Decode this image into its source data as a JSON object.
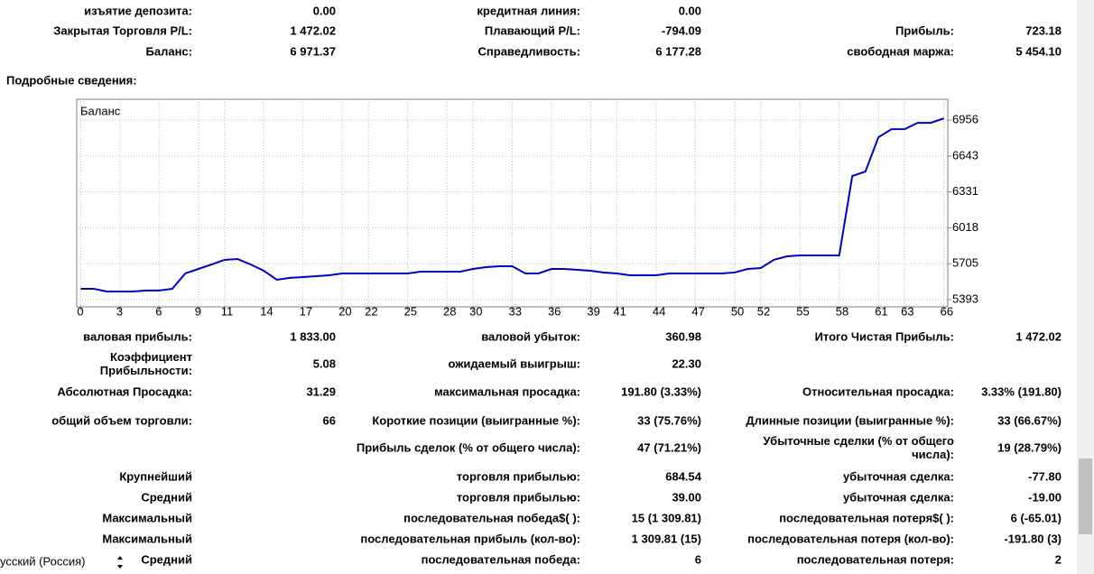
{
  "summary": {
    "rows": [
      [
        "изъятие депозита:",
        "0.00",
        "кредитная линия:",
        "0.00",
        null,
        null
      ],
      [
        "Закрытая Торговля P/L:",
        "1 472.02",
        "Плавающий P/L:",
        "-794.09",
        "Прибыль:",
        "723.18"
      ],
      [
        "Баланс:",
        "6 971.37",
        "Справедливость:",
        "6 177.28",
        "свободная маржа:",
        "5 454.10"
      ]
    ]
  },
  "section_title": "Подробные сведения:",
  "chart": {
    "type": "line",
    "title": "Баланс",
    "color": "#0000c8",
    "grid": true,
    "x": [
      0,
      1,
      2,
      3,
      4,
      5,
      6,
      7,
      8,
      9,
      10,
      11,
      12,
      13,
      14,
      15,
      16,
      17,
      18,
      19,
      20,
      21,
      22,
      23,
      24,
      25,
      26,
      27,
      28,
      29,
      30,
      31,
      32,
      33,
      34,
      35,
      36,
      37,
      38,
      39,
      40,
      41,
      42,
      43,
      44,
      45,
      46,
      47,
      48,
      49,
      50,
      51,
      52,
      53,
      54,
      55,
      56,
      57,
      58,
      59,
      60,
      61,
      62,
      63,
      64,
      65,
      66
    ],
    "values": [
      5487,
      5487,
      5464,
      5464,
      5464,
      5472,
      5472,
      5487,
      5621,
      5660,
      5699,
      5739,
      5746,
      5699,
      5644,
      5566,
      5582,
      5589,
      5597,
      5605,
      5621,
      5621,
      5621,
      5621,
      5621,
      5621,
      5636,
      5636,
      5636,
      5636,
      5660,
      5676,
      5684,
      5684,
      5621,
      5621,
      5660,
      5660,
      5652,
      5644,
      5629,
      5621,
      5605,
      5605,
      5605,
      5621,
      5621,
      5621,
      5621,
      5621,
      5629,
      5660,
      5668,
      5739,
      5770,
      5778,
      5778,
      5778,
      5778,
      6469,
      6508,
      6807,
      6877,
      6877,
      6932,
      6932,
      6971
    ],
    "xlim": [
      -0.3,
      66.3
    ],
    "ylim": [
      5330,
      7137
    ],
    "xticks": [
      0,
      3,
      6,
      9,
      11,
      14,
      17,
      20,
      22,
      25,
      28,
      30,
      33,
      36,
      39,
      41,
      44,
      47,
      50,
      52,
      55,
      58,
      61,
      63,
      66
    ],
    "yticks": [
      5393,
      5705,
      6018,
      6331,
      6643,
      6956
    ]
  },
  "details": {
    "rows": [
      [
        "валовая прибыль:",
        "1 833.00",
        "валовой убыток:",
        "360.98",
        "Итого Чистая Прибыль:",
        "1 472.02"
      ],
      [
        [
          "Коэффициент",
          "Прибыльности:"
        ],
        "5.08",
        "ожидаемый выигрыш:",
        "22.30",
        null,
        null
      ],
      [
        "Абсолютная Просадка:",
        "31.29",
        "максимальная просадка:",
        "191.80 (3.33%)",
        "Относительная просадка:",
        "3.33% (191.80)"
      ],
      [
        "общий объем торговли:",
        "66",
        "Короткие позиции (выигранные %):",
        "33 (75.76%)",
        "Длинные позиции (выигранные %):",
        "33 (66.67%)"
      ],
      [
        null,
        null,
        "Прибыль сделок (% от общего числа):",
        "47 (71.21%)",
        [
          "Убыточные сделки (% от общего",
          "числа):"
        ],
        "19 (28.79%)"
      ],
      [
        "Крупнейший",
        null,
        "торговля прибылью:",
        "684.54",
        "убыточная сделка:",
        "-77.80"
      ],
      [
        "Средний",
        null,
        "торговля прибылью:",
        "39.00",
        "убыточная сделка:",
        "-19.00"
      ],
      [
        "Максимальный",
        null,
        "последовательная победа$( ):",
        "15 (1 309.81)",
        "последовательная потеря$( ):",
        "6 (-65.01)"
      ],
      [
        "Максимальный",
        null,
        "последовательная прибыль (кол-во):",
        "1 309.81 (15)",
        "последовательная потеря (кол-во):",
        "-191.80 (3)"
      ],
      [
        "Средний",
        null,
        "последовательная победа:",
        "6",
        "последовательная потеря:",
        "2"
      ]
    ]
  },
  "language": "усский (Россия)"
}
